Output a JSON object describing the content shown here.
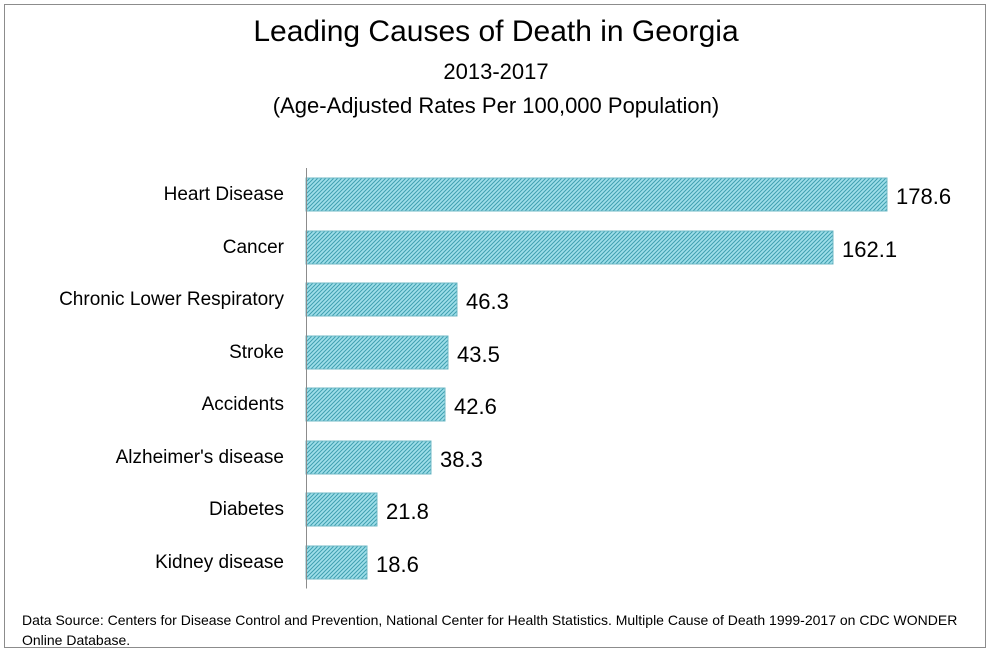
{
  "chart_data": {
    "type": "bar",
    "orientation": "horizontal",
    "title": "Leading Causes of Death in Georgia",
    "subtitle": "2013-2017",
    "subtitle2": "(Age-Adjusted Rates Per 100,000 Population)",
    "categories": [
      "Heart Disease",
      "Cancer",
      "Chronic Lower Respiratory",
      "Stroke",
      "Accidents",
      "Alzheimer's disease",
      "Diabetes",
      "Kidney disease"
    ],
    "values": [
      178.6,
      162.1,
      46.3,
      43.5,
      42.6,
      38.3,
      21.8,
      18.6
    ],
    "value_labels": [
      "178.6",
      "162.1",
      "46.3",
      "43.5",
      "42.6",
      "38.3",
      "21.8",
      "18.6"
    ],
    "xlim": [
      0,
      178.6
    ],
    "grid": false,
    "legend": "none",
    "bar_color": "#9fdfea",
    "bar_hatch_color": "#3f9fb0",
    "source_note": "Data Source: Centers for Disease Control and Prevention, National Center for Health Statistics.  Multiple Cause of Death 1999-2017 on CDC WONDER Online Database."
  }
}
